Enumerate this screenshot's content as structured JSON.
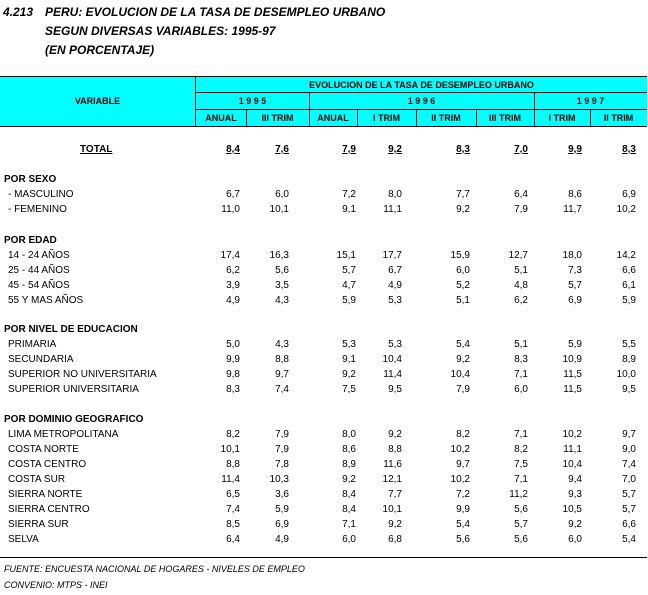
{
  "title": {
    "number": "4.213",
    "line1": "PERU:  EVOLUCION DE LA TASA DE DESEMPLEO URBANO",
    "line2": "SEGUN DIVERSAS VARIABLES: 1995-97",
    "line3": "(EN PORCENTAJE)"
  },
  "header": {
    "variable": "VARIABLE",
    "group": "EVOLUCION DE LA TASA DE DESEMPLEO URBANO",
    "years": [
      "1 9 9 5",
      "1 9 9 6",
      "1 9 9 7"
    ],
    "periods": [
      "ANUAL",
      "III  TRIM",
      "ANUAL",
      "I  TRIM",
      "II  TRIM",
      "III  TRIM",
      "I  TRIM",
      "II  TRIM"
    ]
  },
  "total": {
    "label": "TOTAL",
    "values": [
      "8,4",
      "7,6",
      "7,9",
      "9,2",
      "8,3",
      "7,0",
      "9,9",
      "8,3"
    ]
  },
  "sections": [
    {
      "title": "POR SEXO",
      "rows": [
        {
          "label": " - MASCULINO",
          "values": [
            "6,7",
            "6,0",
            "7,2",
            "8,0",
            "7,7",
            "6,4",
            "8,6",
            "6,9"
          ]
        },
        {
          "label": " - FEMENINO",
          "values": [
            "11,0",
            "10,1",
            "9,1",
            "11,1",
            "9,2",
            "7,9",
            "11,7",
            "10,2"
          ]
        }
      ]
    },
    {
      "title": "POR EDAD",
      "rows": [
        {
          "label": "14 - 24 AÑOS",
          "values": [
            "17,4",
            "16,3",
            "15,1",
            "17,7",
            "15,9",
            "12,7",
            "18,0",
            "14,2"
          ]
        },
        {
          "label": "25 - 44 AÑOS",
          "values": [
            "6,2",
            "5,6",
            "5,7",
            "6,7",
            "6,0",
            "5,1",
            "7,3",
            "6,6"
          ]
        },
        {
          "label": "45 - 54 AÑOS",
          "values": [
            "3,9",
            "3,5",
            "4,7",
            "4,9",
            "5,2",
            "4,8",
            "5,7",
            "6,1"
          ]
        },
        {
          "label": "55 Y MAS AÑOS",
          "values": [
            "4,9",
            "4,3",
            "5,9",
            "5,3",
            "5,1",
            "6,2",
            "6,9",
            "5,9"
          ]
        }
      ]
    },
    {
      "title": "POR NIVEL DE EDUCACION",
      "rows": [
        {
          "label": "PRIMARIA",
          "values": [
            "5,0",
            "4,3",
            "5,3",
            "5,3",
            "5,4",
            "5,1",
            "5,9",
            "5,5"
          ]
        },
        {
          "label": "SECUNDARIA",
          "values": [
            "9,9",
            "8,8",
            "9,1",
            "10,4",
            "9,2",
            "8,3",
            "10,9",
            "8,9"
          ]
        },
        {
          "label": "SUPERIOR NO UNIVERSITARIA",
          "values": [
            "9,8",
            "9,7",
            "9,2",
            "11,4",
            "10,4",
            "7,1",
            "11,5",
            "10,0"
          ]
        },
        {
          "label": "SUPERIOR UNIVERSITARIA",
          "values": [
            "8,3",
            "7,4",
            "7,5",
            "9,5",
            "7,9",
            "6,0",
            "11,5",
            "9,5"
          ]
        }
      ]
    },
    {
      "title": "POR DOMINIO GEOGRAFICO",
      "rows": [
        {
          "label": "LIMA METROPOLITANA",
          "values": [
            "8,2",
            "7,9",
            "8,0",
            "9,2",
            "8,2",
            "7,1",
            "10,2",
            "9,7"
          ]
        },
        {
          "label": "COSTA NORTE",
          "values": [
            "10,1",
            "7,9",
            "8,6",
            "8,8",
            "10,2",
            "8,2",
            "11,1",
            "9,0"
          ]
        },
        {
          "label": "COSTA CENTRO",
          "values": [
            "8,8",
            "7,8",
            "8,9",
            "11,6",
            "9,7",
            "7,5",
            "10,4",
            "7,4"
          ]
        },
        {
          "label": "COSTA SUR",
          "values": [
            "11,4",
            "10,3",
            "9,2",
            "12,1",
            "10,2",
            "7,1",
            "9,4",
            "7,0"
          ]
        },
        {
          "label": "SIERRA NORTE",
          "values": [
            "6,5",
            "3,6",
            "8,4",
            "7,7",
            "7,2",
            "11,2",
            "9,3",
            "5,7"
          ]
        },
        {
          "label": "SIERRA CENTRO",
          "values": [
            "7,4",
            "5,9",
            "8,4",
            "10,1",
            "9,9",
            "5,6",
            "10,5",
            "5,7"
          ]
        },
        {
          "label": "SIERRA SUR",
          "values": [
            "8,5",
            "6,9",
            "7,1",
            "9,2",
            "5,4",
            "5,7",
            "9,2",
            "6,6"
          ]
        },
        {
          "label": "SELVA",
          "values": [
            "6,4",
            "4,9",
            "6,0",
            "6,8",
            "5,6",
            "5,6",
            "6,0",
            "5,4"
          ]
        }
      ]
    }
  ],
  "footer": {
    "source": "FUENTE: ENCUESTA NACIONAL DE HOGARES - NIVELES DE EMPLEO",
    "agreement": "CONVENIO: MTPS - INEI"
  },
  "colors": {
    "header_bg": "#00ffff"
  }
}
